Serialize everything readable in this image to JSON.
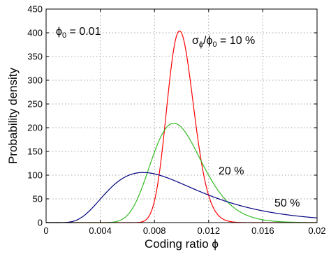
{
  "chart_data": {
    "type": "line",
    "xlabel": "Coding ratio ϕ",
    "ylabel": "Probability density",
    "xlim": [
      0,
      0.02
    ],
    "ylim": [
      0,
      450
    ],
    "xticks": [
      0,
      0.004,
      0.008,
      0.012,
      0.016,
      0.02
    ],
    "xtick_labels": [
      "0",
      "0.004",
      "0.008",
      "0.012",
      "0.016",
      "0.02"
    ],
    "yticks": [
      0,
      50,
      100,
      150,
      200,
      250,
      300,
      350,
      400,
      450
    ],
    "ytick_labels": [
      "0",
      "50",
      "100",
      "150",
      "200",
      "250",
      "300",
      "350",
      "400",
      "450"
    ],
    "grid": true,
    "phi0": 0.01,
    "series": [
      {
        "label": "σϕ/ϕ0 = 10 %",
        "sigma_fraction": 0.1,
        "color": "#ff0000"
      },
      {
        "label": "20 %",
        "sigma_fraction": 0.2,
        "color": "#33bb22"
      },
      {
        "label": "50 %",
        "sigma_fraction": 0.5,
        "color": "#000080"
      }
    ],
    "annotations": {
      "phi0_text": "ϕ",
      "phi0_sub": "0",
      "phi0_value": " = 0.01",
      "sigma_sym": "σ",
      "sigma_sub": "ϕ",
      "slash_phi": "/ϕ",
      "phi0_sub2": "0",
      "ten_pct": " = 10 %",
      "twenty_pct": "20 %",
      "fifty_pct": "50 %"
    }
  }
}
